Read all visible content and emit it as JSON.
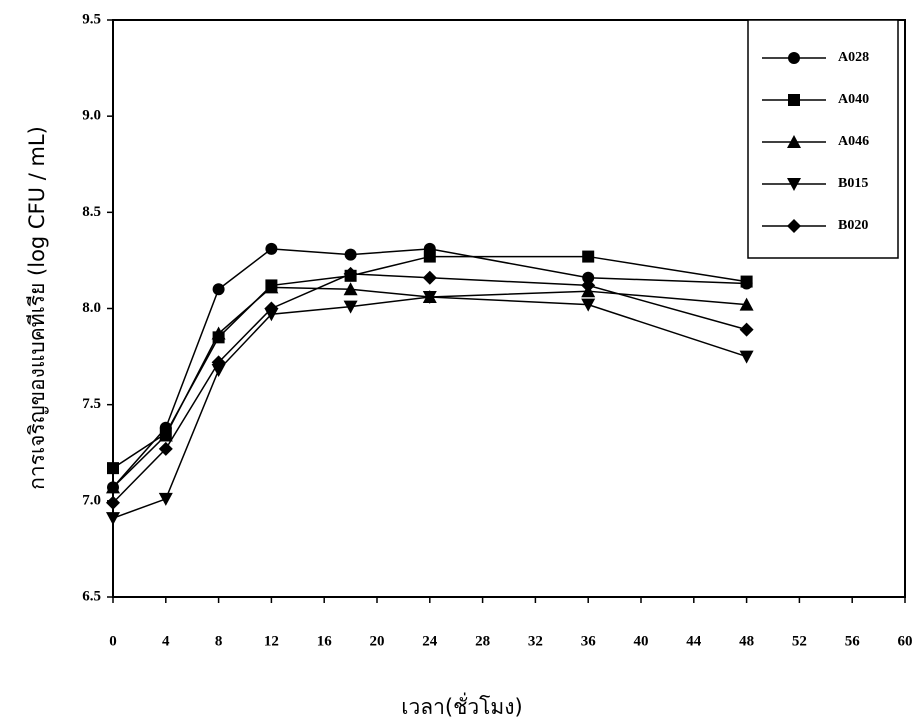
{
  "chart_data": {
    "type": "line",
    "x_label": "เวลา(ชั่วโมง)",
    "y_label": "การเจริญของแบคทีเรีย (log CFU / mL)",
    "x": [
      0,
      4,
      8,
      12,
      18,
      24,
      36,
      48
    ],
    "series": [
      {
        "name": "A028",
        "color": "#000000",
        "marker": "circle",
        "values": [
          7.07,
          7.38,
          8.1,
          8.31,
          8.28,
          8.31,
          8.16,
          8.13
        ]
      },
      {
        "name": "A040",
        "color": "#000000",
        "marker": "square",
        "values": [
          7.17,
          7.35,
          7.85,
          8.12,
          8.17,
          8.27,
          8.27,
          8.14
        ]
      },
      {
        "name": "A046",
        "color": "#000000",
        "marker": "triangle-up",
        "values": [
          7.07,
          7.34,
          7.87,
          8.11,
          8.1,
          8.06,
          8.09,
          8.02
        ]
      },
      {
        "name": "B015",
        "color": "#000000",
        "marker": "triangle-down",
        "values": [
          6.91,
          7.01,
          7.68,
          7.97,
          8.01,
          8.06,
          8.02,
          7.75
        ]
      },
      {
        "name": "B020",
        "color": "#000000",
        "marker": "diamond",
        "values": [
          6.99,
          7.27,
          7.72,
          8.0,
          8.18,
          8.16,
          8.12,
          7.89
        ]
      }
    ],
    "xlim": [
      0,
      60
    ],
    "xticks": [
      0,
      4,
      8,
      12,
      16,
      20,
      24,
      28,
      32,
      36,
      40,
      44,
      48,
      52,
      56,
      60
    ],
    "ylim": [
      6.5,
      9.5
    ],
    "yticks": [
      6.5,
      {
        "value": 7,
        "label": "7.0"
      },
      7.5,
      {
        "value": 8,
        "label": "8.0"
      },
      8.5,
      {
        "value": 9,
        "label": "9.0"
      },
      9.5
    ],
    "legend": "upper-right"
  }
}
